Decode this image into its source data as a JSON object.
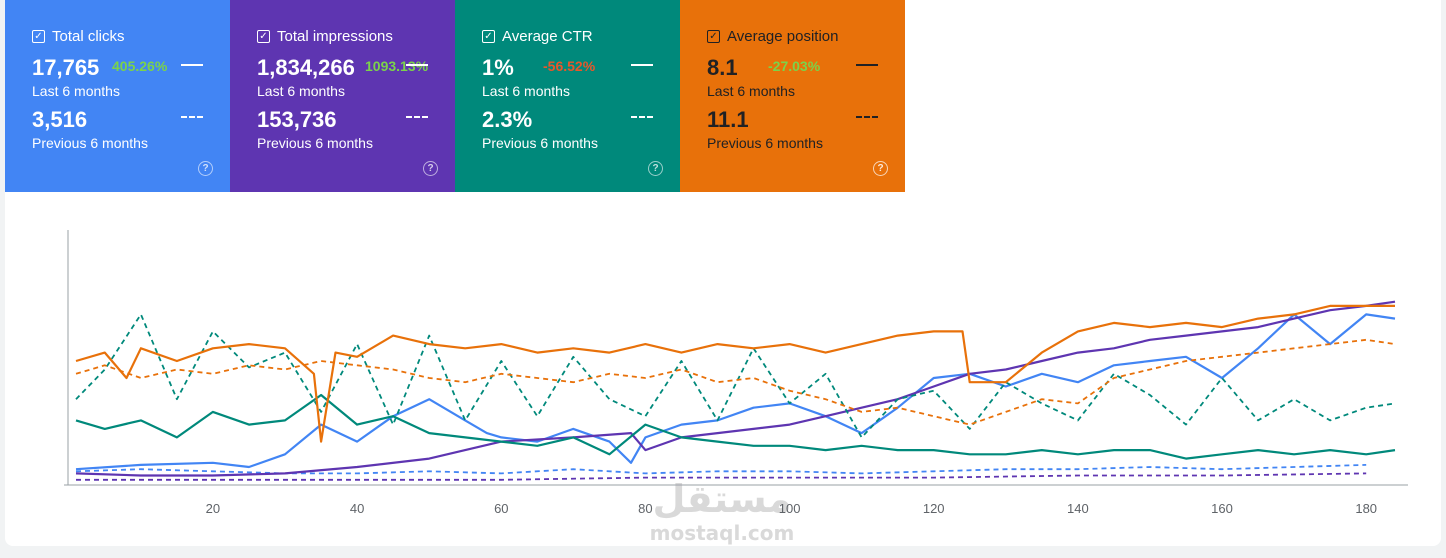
{
  "metrics": [
    {
      "title": "Total clicks",
      "color": "#4285f4",
      "current_value": "17,765",
      "delta": "405.26%",
      "delta_type": "pos",
      "current_label": "Last 6 months",
      "previous_value": "3,516",
      "previous_label": "Previous 6 months",
      "checked": true
    },
    {
      "title": "Total impressions",
      "color": "#5e35b1",
      "current_value": "1,834,266",
      "delta": "1093.13%",
      "delta_type": "pos",
      "current_label": "Last 6 months",
      "previous_value": "153,736",
      "previous_label": "Previous 6 months",
      "checked": true
    },
    {
      "title": "Average CTR",
      "color": "#00897b",
      "current_value": "1%",
      "delta": "-56.52%",
      "delta_type": "neg",
      "current_label": "Last 6 months",
      "previous_value": "2.3%",
      "previous_label": "Previous 6 months",
      "checked": true
    },
    {
      "title": "Average position",
      "color": "#e8710a",
      "current_value": "8.1",
      "delta": "-27.03%",
      "delta_type": "neg",
      "current_label": "Last 6 months",
      "previous_value": "11.1",
      "previous_label": "Previous 6 months",
      "checked": true
    }
  ],
  "icons": {
    "checkbox": "check-icon",
    "help": "help-circle-icon"
  },
  "watermark": {
    "arabic": "مستقل",
    "latin": "mostaql.com"
  },
  "chart_data": {
    "type": "line",
    "x_ticks": [
      20,
      40,
      60,
      80,
      100,
      120,
      140,
      160,
      180
    ],
    "xlim": [
      1,
      184
    ],
    "ylim": [
      0,
      100
    ],
    "grid": false,
    "series": [
      {
        "key": "clicks_current",
        "color": "#4285f4",
        "dashed": false,
        "x": [
          1,
          10,
          20,
          25,
          30,
          35,
          40,
          45,
          50,
          55,
          58,
          60,
          65,
          70,
          75,
          78,
          80,
          85,
          90,
          95,
          100,
          105,
          110,
          115,
          120,
          125,
          130,
          135,
          140,
          145,
          150,
          155,
          160,
          165,
          170,
          175,
          180,
          184
        ],
        "values": [
          7,
          9,
          10,
          8,
          14,
          28,
          20,
          32,
          40,
          30,
          24,
          22,
          20,
          26,
          20,
          10,
          22,
          28,
          30,
          36,
          38,
          32,
          24,
          36,
          50,
          52,
          46,
          52,
          48,
          56,
          58,
          60,
          50,
          64,
          80,
          66,
          80,
          78
        ]
      },
      {
        "key": "clicks_previous",
        "color": "#4285f4",
        "dashed": true,
        "x": [
          1,
          10,
          20,
          30,
          40,
          50,
          60,
          70,
          80,
          90,
          100,
          110,
          120,
          130,
          140,
          150,
          160,
          170,
          180
        ],
        "values": [
          6,
          7,
          6,
          5,
          5,
          6,
          5,
          7,
          5,
          6,
          6,
          5,
          6,
          7,
          7,
          8,
          7,
          8,
          9
        ]
      },
      {
        "key": "impressions_current",
        "color": "#5e35b1",
        "dashed": false,
        "x": [
          1,
          10,
          20,
          30,
          40,
          50,
          55,
          60,
          70,
          78,
          80,
          85,
          90,
          95,
          100,
          105,
          110,
          115,
          120,
          125,
          130,
          135,
          140,
          145,
          150,
          155,
          160,
          165,
          170,
          175,
          180,
          184
        ],
        "values": [
          5,
          4,
          4,
          5,
          8,
          12,
          16,
          20,
          22,
          24,
          16,
          22,
          24,
          26,
          28,
          32,
          36,
          40,
          46,
          52,
          54,
          58,
          62,
          64,
          68,
          70,
          72,
          74,
          78,
          82,
          84,
          86
        ]
      },
      {
        "key": "impressions_previous",
        "color": "#5e35b1",
        "dashed": true,
        "x": [
          1,
          20,
          40,
          60,
          80,
          100,
          120,
          140,
          160,
          180
        ],
        "values": [
          2,
          2,
          2,
          2,
          3,
          3,
          3,
          4,
          4,
          5
        ]
      },
      {
        "key": "ctr_current",
        "color": "#00897b",
        "dashed": false,
        "x": [
          1,
          5,
          10,
          15,
          20,
          25,
          30,
          35,
          40,
          45,
          50,
          55,
          60,
          65,
          70,
          75,
          80,
          85,
          90,
          95,
          100,
          105,
          110,
          115,
          120,
          125,
          130,
          135,
          140,
          145,
          150,
          155,
          160,
          165,
          170,
          175,
          180,
          184
        ],
        "values": [
          30,
          26,
          30,
          22,
          34,
          28,
          30,
          42,
          28,
          32,
          24,
          22,
          20,
          18,
          22,
          14,
          28,
          22,
          20,
          18,
          18,
          16,
          18,
          16,
          16,
          14,
          14,
          16,
          14,
          16,
          16,
          12,
          14,
          16,
          14,
          16,
          14,
          16
        ]
      },
      {
        "key": "ctr_previous",
        "color": "#00897b",
        "dashed": true,
        "x": [
          1,
          5,
          10,
          15,
          20,
          25,
          30,
          35,
          40,
          45,
          50,
          55,
          60,
          65,
          70,
          75,
          80,
          85,
          90,
          95,
          100,
          105,
          110,
          115,
          120,
          125,
          130,
          135,
          140,
          145,
          150,
          155,
          160,
          165,
          170,
          175,
          180,
          184
        ],
        "values": [
          40,
          54,
          80,
          40,
          72,
          55,
          62,
          34,
          66,
          28,
          70,
          30,
          58,
          32,
          60,
          40,
          32,
          58,
          30,
          64,
          38,
          52,
          22,
          40,
          44,
          26,
          48,
          38,
          30,
          52,
          42,
          28,
          50,
          30,
          40,
          30,
          36,
          38
        ]
      },
      {
        "key": "position_current",
        "color": "#e8710a",
        "dashed": false,
        "x": [
          1,
          5,
          8,
          10,
          15,
          20,
          25,
          30,
          34,
          35,
          37,
          40,
          45,
          50,
          55,
          60,
          65,
          70,
          75,
          80,
          85,
          90,
          95,
          100,
          105,
          110,
          115,
          120,
          124,
          125,
          130,
          135,
          140,
          145,
          150,
          155,
          160,
          165,
          170,
          175,
          180,
          184
        ],
        "values": [
          58,
          62,
          50,
          64,
          58,
          64,
          66,
          64,
          52,
          20,
          62,
          60,
          70,
          66,
          64,
          66,
          62,
          64,
          62,
          66,
          62,
          66,
          64,
          66,
          62,
          66,
          70,
          72,
          72,
          48,
          48,
          62,
          72,
          76,
          74,
          76,
          74,
          78,
          80,
          84,
          84,
          84
        ]
      },
      {
        "key": "position_previous",
        "color": "#e8710a",
        "dashed": true,
        "x": [
          1,
          5,
          10,
          15,
          20,
          25,
          30,
          35,
          40,
          45,
          50,
          55,
          60,
          65,
          70,
          75,
          80,
          85,
          90,
          95,
          100,
          105,
          110,
          115,
          120,
          125,
          130,
          135,
          140,
          145,
          150,
          155,
          160,
          165,
          170,
          175,
          180,
          184
        ],
        "values": [
          52,
          56,
          50,
          54,
          52,
          56,
          54,
          58,
          56,
          54,
          50,
          48,
          52,
          50,
          48,
          52,
          50,
          54,
          48,
          50,
          44,
          40,
          34,
          36,
          32,
          28,
          34,
          40,
          38,
          50,
          54,
          58,
          60,
          62,
          64,
          66,
          68,
          66
        ]
      }
    ]
  }
}
